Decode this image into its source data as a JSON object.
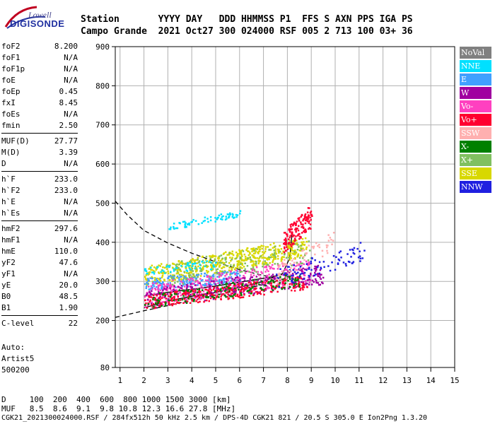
{
  "logo": {
    "line1": "Lowell",
    "line2": "DIGISONDE"
  },
  "header": {
    "row1": "Station       YYYY DAY   DDD HHMMSS P1  FFS S AXN PPS IGA PS",
    "row2": "Campo Grande  2021 Oct27 300 024000 RSF 005 2 713 100 03+ 36"
  },
  "params": [
    {
      "k": "foF2",
      "v": "8.200"
    },
    {
      "k": "foF1",
      "v": "N/A"
    },
    {
      "k": "foF1p",
      "v": "N/A"
    },
    {
      "k": "foE",
      "v": "N/A"
    },
    {
      "k": "foEp",
      "v": "0.45"
    },
    {
      "k": "fxI",
      "v": "8.45"
    },
    {
      "k": "foEs",
      "v": "N/A"
    },
    {
      "k": "fmin",
      "v": "2.50"
    },
    {
      "k": "MUF(D)",
      "v": "27.77"
    },
    {
      "k": "M(D)",
      "v": "3.39"
    },
    {
      "k": "D",
      "v": "N/A"
    },
    {
      "k": "h`F",
      "v": "233.0"
    },
    {
      "k": "h`F2",
      "v": "233.0"
    },
    {
      "k": "h`E",
      "v": "N/A"
    },
    {
      "k": "h`Es",
      "v": "N/A"
    },
    {
      "k": "hmF2",
      "v": "297.6"
    },
    {
      "k": "hmF1",
      "v": "N/A"
    },
    {
      "k": "hmE",
      "v": "110.0"
    },
    {
      "k": "yF2",
      "v": "47.6"
    },
    {
      "k": "yF1",
      "v": "N/A"
    },
    {
      "k": "yE",
      "v": "20.0"
    },
    {
      "k": "B0",
      "v": "48.5"
    },
    {
      "k": "B1",
      "v": "1.90"
    },
    {
      "k": "C-level",
      "v": "22"
    }
  ],
  "auto": [
    "Auto:",
    "Artist5",
    "500200"
  ],
  "footer": {
    "d_row": "D     100  200  400  600  800 1000 1500 3000 [km]",
    "muf_row": "MUF   8.5  8.6  9.1  9.8 10.8 12.3 16.6 27.8 [MHz]",
    "file_row": "CGK21_2021300024000.RSF / 284fx512h 50 kHz 2.5 km / DPS-4D CGK21 821 / 20.5 S 305.0 E Ion2Png 1.3.20"
  },
  "legend": [
    {
      "label": "NoVal",
      "color": "#808080"
    },
    {
      "label": "NNE",
      "color": "#00e0ff"
    },
    {
      "label": "E",
      "color": "#40a0ff"
    },
    {
      "label": "W",
      "color": "#a000a0"
    },
    {
      "label": "Vo-",
      "color": "#ff40c0"
    },
    {
      "label": "Vo+",
      "color": "#ff0030"
    },
    {
      "label": "SSW",
      "color": "#ffb0b0"
    },
    {
      "label": "X-",
      "color": "#008000"
    },
    {
      "label": "X+",
      "color": "#80c060"
    },
    {
      "label": "SSE",
      "color": "#d8d800"
    },
    {
      "label": "NNW",
      "color": "#2020e0"
    }
  ],
  "chart_data": {
    "type": "scatter",
    "xlim": [
      0.8,
      15
    ],
    "ylim": [
      80,
      900
    ],
    "x_ticks": [
      1,
      2,
      3,
      4,
      5,
      6,
      7,
      8,
      9,
      10,
      11,
      12,
      13,
      14,
      15
    ],
    "x_tick_labels": [
      "1",
      "2",
      "3",
      "4",
      "5",
      "6",
      "7",
      "8",
      "9",
      "10",
      "11",
      "12",
      "13",
      "14",
      "15"
    ],
    "y_ticks": [
      80,
      200,
      300,
      400,
      500,
      600,
      700,
      800,
      900
    ],
    "y_tick_labels": [
      "80",
      "200",
      "300",
      "400",
      "500",
      "600",
      "700",
      "800",
      "900"
    ],
    "grid": true,
    "legend_position": "right",
    "traces": [
      {
        "color": "#000000",
        "x": [
          2.0,
          3.0,
          4.0,
          5.0,
          6.0,
          7.0,
          7.8,
          8.1,
          8.2
        ],
        "y": [
          232,
          250,
          262,
          272,
          285,
          300,
          320,
          360,
          425
        ]
      },
      {
        "color": "#000000",
        "dashed": true,
        "x": [
          0.8,
          1.3,
          2.0,
          3.0,
          4.0,
          5.0,
          6.0,
          7.0,
          7.6
        ],
        "y": [
          505,
          470,
          430,
          398,
          372,
          350,
          330,
          315,
          308
        ]
      },
      {
        "color": "#000000",
        "dashed": true,
        "x": [
          0.8,
          1.5,
          2.0,
          3.0,
          4.0,
          5.0,
          6.0,
          7.0,
          7.8,
          8.2
        ],
        "y": [
          208,
          218,
          225,
          238,
          252,
          265,
          278,
          292,
          305,
          318
        ]
      },
      {
        "color": "#000000",
        "x": [
          2.0,
          3.0,
          4.0,
          5.0,
          6.0,
          7.0,
          8.0
        ],
        "y": [
          262,
          272,
          280,
          288,
          298,
          308,
          320
        ]
      }
    ],
    "clusters": [
      {
        "color": "#d8d800",
        "x": [
          2.0,
          8.8
        ],
        "y_base": [
          315,
          390
        ],
        "spread": 25,
        "n": 520
      },
      {
        "color": "#40a0ff",
        "x": [
          2.0,
          6.0
        ],
        "y_base": [
          295,
          315
        ],
        "spread": 16,
        "n": 200
      },
      {
        "color": "#ff40c0",
        "x": [
          2.0,
          9.0
        ],
        "y_base": [
          265,
          330
        ],
        "spread": 30,
        "n": 380
      },
      {
        "color": "#a000a0",
        "x": [
          2.0,
          9.5
        ],
        "y_base": [
          255,
          320
        ],
        "spread": 25,
        "n": 260
      },
      {
        "color": "#ff0030",
        "x": [
          2.0,
          8.8
        ],
        "y_base": [
          248,
          300
        ],
        "spread": 18,
        "n": 300
      },
      {
        "color": "#008000",
        "x": [
          2.0,
          8.5
        ],
        "y_base": [
          250,
          305
        ],
        "spread": 18,
        "n": 150
      },
      {
        "color": "#80c060",
        "x": [
          3.0,
          9.0
        ],
        "y_base": [
          320,
          380
        ],
        "spread": 30,
        "n": 150
      },
      {
        "color": "#00e0ff",
        "x": [
          2.0,
          5.0
        ],
        "y_base": [
          330,
          345
        ],
        "spread": 12,
        "n": 60
      },
      {
        "color": "#00e0ff",
        "x": [
          3.0,
          6.0
        ],
        "y_base": [
          440,
          475
        ],
        "spread": 8,
        "n": 70
      },
      {
        "color": "#2020e0",
        "x": [
          7.5,
          11.2
        ],
        "y_base": [
          310,
          380
        ],
        "spread": 25,
        "n": 90
      },
      {
        "color": "#ff0030",
        "x": [
          7.8,
          9.0
        ],
        "y_base": [
          400,
          470
        ],
        "spread": 30,
        "n": 140
      },
      {
        "color": "#ffb0b0",
        "x": [
          7.5,
          10.0
        ],
        "y_base": [
          320,
          410
        ],
        "spread": 25,
        "n": 60
      }
    ]
  }
}
